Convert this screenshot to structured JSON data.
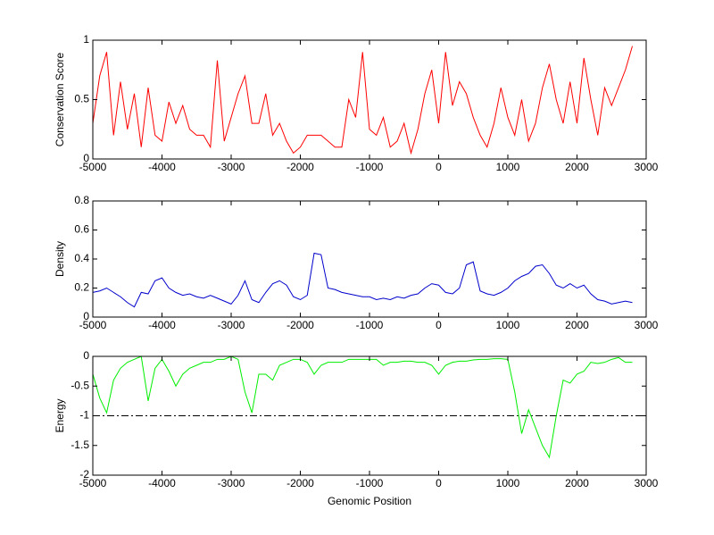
{
  "chart_data": [
    {
      "type": "line",
      "ylabel": "Conservation Score",
      "x": [
        -5000,
        -4900,
        -4800,
        -4700,
        -4600,
        -4500,
        -4400,
        -4300,
        -4200,
        -4100,
        -4000,
        -3900,
        -3800,
        -3700,
        -3600,
        -3500,
        -3400,
        -3300,
        -3200,
        -3100,
        -3000,
        -2900,
        -2800,
        -2700,
        -2600,
        -2500,
        -2400,
        -2300,
        -2200,
        -2100,
        -2000,
        -1900,
        -1800,
        -1700,
        -1600,
        -1500,
        -1400,
        -1300,
        -1200,
        -1100,
        -1000,
        -900,
        -800,
        -700,
        -600,
        -500,
        -400,
        -300,
        -200,
        -100,
        0,
        100,
        200,
        300,
        400,
        500,
        600,
        700,
        800,
        900,
        1000,
        1100,
        1200,
        1300,
        1400,
        1500,
        1600,
        1700,
        1800,
        1900,
        2000,
        2100,
        2200,
        2300,
        2400,
        2500,
        2600,
        2700,
        2800
      ],
      "series": [
        {
          "color": "#ff0000",
          "values": [
            0.3,
            0.7,
            0.9,
            0.2,
            0.65,
            0.25,
            0.55,
            0.1,
            0.6,
            0.2,
            0.15,
            0.48,
            0.3,
            0.45,
            0.25,
            0.2,
            0.2,
            0.1,
            0.83,
            0.15,
            0.35,
            0.55,
            0.7,
            0.3,
            0.3,
            0.55,
            0.2,
            0.3,
            0.15,
            0.05,
            0.1,
            0.2,
            0.2,
            0.2,
            0.15,
            0.1,
            0.1,
            0.5,
            0.35,
            0.9,
            0.25,
            0.2,
            0.35,
            0.1,
            0.15,
            0.3,
            0.05,
            0.25,
            0.55,
            0.75,
            0.3,
            0.9,
            0.45,
            0.65,
            0.55,
            0.35,
            0.2,
            0.1,
            0.3,
            0.6,
            0.35,
            0.2,
            0.5,
            0.15,
            0.3,
            0.6,
            0.8,
            0.5,
            0.3,
            0.65,
            0.3,
            0.85,
            0.5,
            0.2,
            0.6,
            0.45,
            0.6,
            0.75,
            0.95
          ]
        }
      ],
      "xlim": [
        -5000,
        3000
      ],
      "xticks": [
        -5000,
        -4000,
        -3000,
        -2000,
        -1000,
        0,
        1000,
        2000,
        3000
      ],
      "ylim": [
        0,
        1
      ],
      "yticks": [
        0,
        0.5,
        1
      ]
    },
    {
      "type": "line",
      "ylabel": "Density",
      "x": [
        -5000,
        -4900,
        -4800,
        -4700,
        -4600,
        -4500,
        -4400,
        -4300,
        -4200,
        -4100,
        -4000,
        -3900,
        -3800,
        -3700,
        -3600,
        -3500,
        -3400,
        -3300,
        -3200,
        -3100,
        -3000,
        -2900,
        -2800,
        -2700,
        -2600,
        -2500,
        -2400,
        -2300,
        -2200,
        -2100,
        -2000,
        -1900,
        -1800,
        -1700,
        -1600,
        -1500,
        -1400,
        -1300,
        -1200,
        -1100,
        -1000,
        -900,
        -800,
        -700,
        -600,
        -500,
        -400,
        -300,
        -200,
        -100,
        0,
        100,
        200,
        300,
        400,
        500,
        600,
        700,
        800,
        900,
        1000,
        1100,
        1200,
        1300,
        1400,
        1500,
        1600,
        1700,
        1800,
        1900,
        2000,
        2100,
        2200,
        2300,
        2400,
        2500,
        2600,
        2700,
        2800
      ],
      "series": [
        {
          "color": "#0000cc",
          "values": [
            0.17,
            0.18,
            0.2,
            0.17,
            0.14,
            0.1,
            0.07,
            0.17,
            0.16,
            0.25,
            0.27,
            0.2,
            0.17,
            0.15,
            0.16,
            0.14,
            0.13,
            0.15,
            0.13,
            0.11,
            0.09,
            0.15,
            0.25,
            0.12,
            0.1,
            0.17,
            0.23,
            0.25,
            0.22,
            0.14,
            0.12,
            0.15,
            0.44,
            0.43,
            0.2,
            0.19,
            0.17,
            0.16,
            0.15,
            0.14,
            0.14,
            0.12,
            0.13,
            0.12,
            0.14,
            0.13,
            0.15,
            0.16,
            0.2,
            0.23,
            0.22,
            0.17,
            0.16,
            0.2,
            0.36,
            0.38,
            0.18,
            0.16,
            0.15,
            0.17,
            0.2,
            0.25,
            0.28,
            0.3,
            0.35,
            0.36,
            0.3,
            0.22,
            0.2,
            0.23,
            0.2,
            0.22,
            0.16,
            0.12,
            0.11,
            0.09,
            0.1,
            0.11,
            0.1
          ]
        }
      ],
      "xlim": [
        -5000,
        3000
      ],
      "xticks": [
        -5000,
        -4000,
        -3000,
        -2000,
        -1000,
        0,
        1000,
        2000,
        3000
      ],
      "ylim": [
        0,
        0.8
      ],
      "yticks": [
        0,
        0.2,
        0.4,
        0.6,
        0.8
      ]
    },
    {
      "type": "line",
      "ylabel": "Energy",
      "xlabel": "Genomic Position",
      "x": [
        -5000,
        -4900,
        -4800,
        -4700,
        -4600,
        -4500,
        -4400,
        -4300,
        -4200,
        -4100,
        -4000,
        -3900,
        -3800,
        -3700,
        -3600,
        -3500,
        -3400,
        -3300,
        -3200,
        -3100,
        -3000,
        -2900,
        -2800,
        -2700,
        -2600,
        -2500,
        -2400,
        -2300,
        -2200,
        -2100,
        -2000,
        -1900,
        -1800,
        -1700,
        -1600,
        -1500,
        -1400,
        -1300,
        -1200,
        -1100,
        -1000,
        -900,
        -800,
        -700,
        -600,
        -500,
        -400,
        -300,
        -200,
        -100,
        0,
        100,
        200,
        300,
        400,
        500,
        600,
        700,
        800,
        900,
        1000,
        1100,
        1200,
        1300,
        1400,
        1500,
        1600,
        1700,
        1800,
        1900,
        2000,
        2100,
        2200,
        2300,
        2400,
        2500,
        2600,
        2700,
        2800
      ],
      "series": [
        {
          "color": "#00ee00",
          "values": [
            -0.3,
            -0.7,
            -0.95,
            -0.4,
            -0.2,
            -0.1,
            -0.05,
            0,
            -0.75,
            -0.2,
            -0.05,
            -0.25,
            -0.5,
            -0.3,
            -0.2,
            -0.15,
            -0.1,
            -0.1,
            -0.05,
            -0.05,
            0,
            -0.05,
            -0.6,
            -0.95,
            -0.3,
            -0.3,
            -0.4,
            -0.15,
            -0.1,
            -0.05,
            -0.05,
            -0.1,
            -0.3,
            -0.15,
            -0.1,
            -0.1,
            -0.1,
            -0.05,
            -0.05,
            -0.05,
            -0.05,
            -0.05,
            -0.15,
            -0.1,
            -0.1,
            -0.08,
            -0.08,
            -0.1,
            -0.1,
            -0.15,
            -0.3,
            -0.15,
            -0.1,
            -0.08,
            -0.08,
            -0.06,
            -0.05,
            -0.05,
            -0.04,
            -0.04,
            -0.05,
            -0.6,
            -1.3,
            -0.9,
            -1.2,
            -1.5,
            -1.7,
            -1.0,
            -0.4,
            -0.45,
            -0.3,
            -0.25,
            -0.1,
            -0.12,
            -0.1,
            -0.05,
            -0.02,
            -0.1,
            -0.1
          ]
        }
      ],
      "reference_line": {
        "value": -1,
        "color": "#000000",
        "style": "dash-dot"
      },
      "xlim": [
        -5000,
        3000
      ],
      "xticks": [
        -5000,
        -4000,
        -3000,
        -2000,
        -1000,
        0,
        1000,
        2000,
        3000
      ],
      "ylim": [
        -2,
        0
      ],
      "yticks": [
        -2,
        -1.5,
        -1,
        -0.5,
        0
      ]
    }
  ]
}
